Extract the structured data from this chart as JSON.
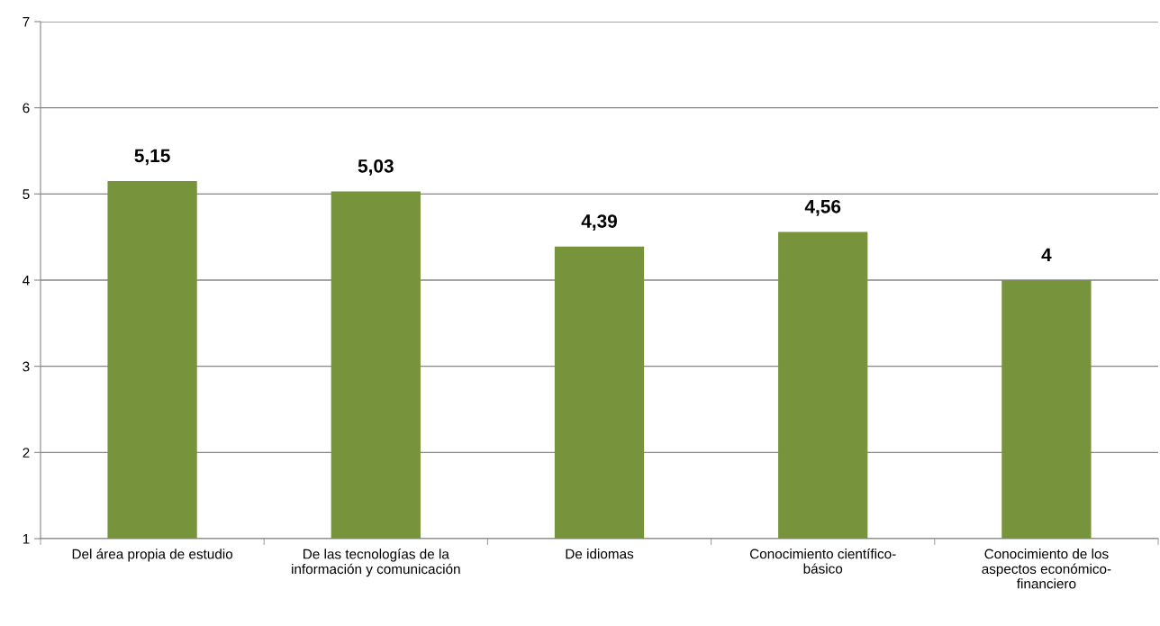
{
  "chart_data": {
    "type": "bar",
    "categories": [
      "Del área propia de estudio",
      "De las tecnologías de la\ninformación y comunicación",
      "De idiomas",
      "Conocimiento científico-\nbásico",
      "Conocimiento de los\naspectos económico-\nfinanciero"
    ],
    "values": [
      5.15,
      5.03,
      4.39,
      4.56,
      4
    ],
    "value_labels": [
      "5,15",
      "5,03",
      "4,39",
      "4,56",
      "4"
    ],
    "color": "#77933c",
    "ylim": [
      1,
      7
    ],
    "yticks": [
      1,
      2,
      3,
      4,
      5,
      6,
      7
    ],
    "grid": "y",
    "legend": false
  }
}
